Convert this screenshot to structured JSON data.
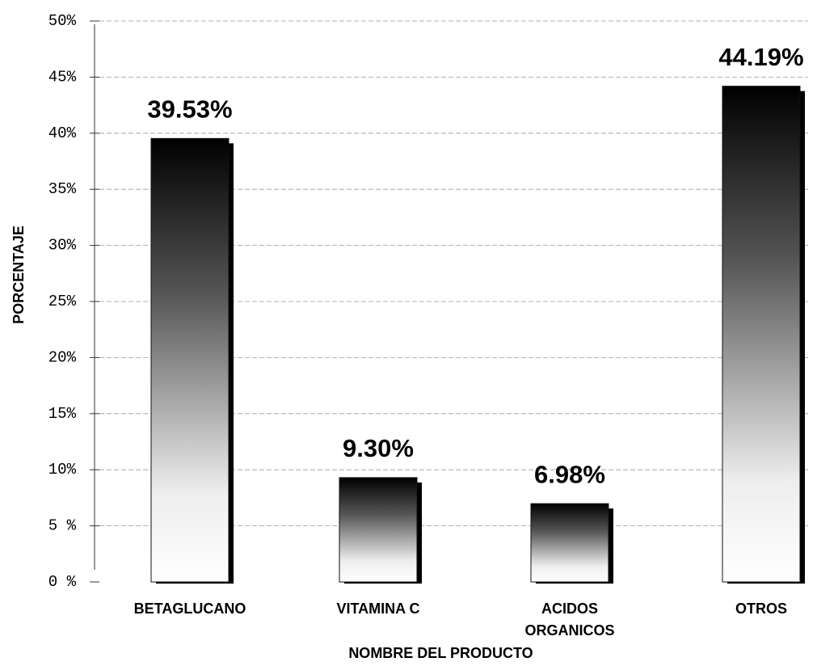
{
  "chart_data": {
    "type": "bar",
    "categories": [
      "BETAGLUCANO",
      "VITAMINA C",
      "ACIDOS ORGANICOS",
      "OTROS"
    ],
    "values": [
      39.53,
      9.3,
      6.98,
      44.19
    ],
    "value_labels": [
      "39.53%",
      "9.30%",
      "6.98%",
      "44.19%"
    ],
    "ylim": [
      0,
      50
    ],
    "yticks": [
      {
        "value": 0,
        "label": "0 %"
      },
      {
        "value": 5,
        "label": "5 %"
      },
      {
        "value": 10,
        "label": "10%"
      },
      {
        "value": 15,
        "label": "15%"
      },
      {
        "value": 20,
        "label": "20%"
      },
      {
        "value": 25,
        "label": "25%"
      },
      {
        "value": 30,
        "label": "30%"
      },
      {
        "value": 35,
        "label": "35%"
      },
      {
        "value": 40,
        "label": "40%"
      },
      {
        "value": 45,
        "label": "45%"
      },
      {
        "value": 50,
        "label": "50%"
      }
    ],
    "y_label": "PORCENTAJE",
    "x_label": "NOMBRE DEL PRODUCTO",
    "grid": true
  }
}
